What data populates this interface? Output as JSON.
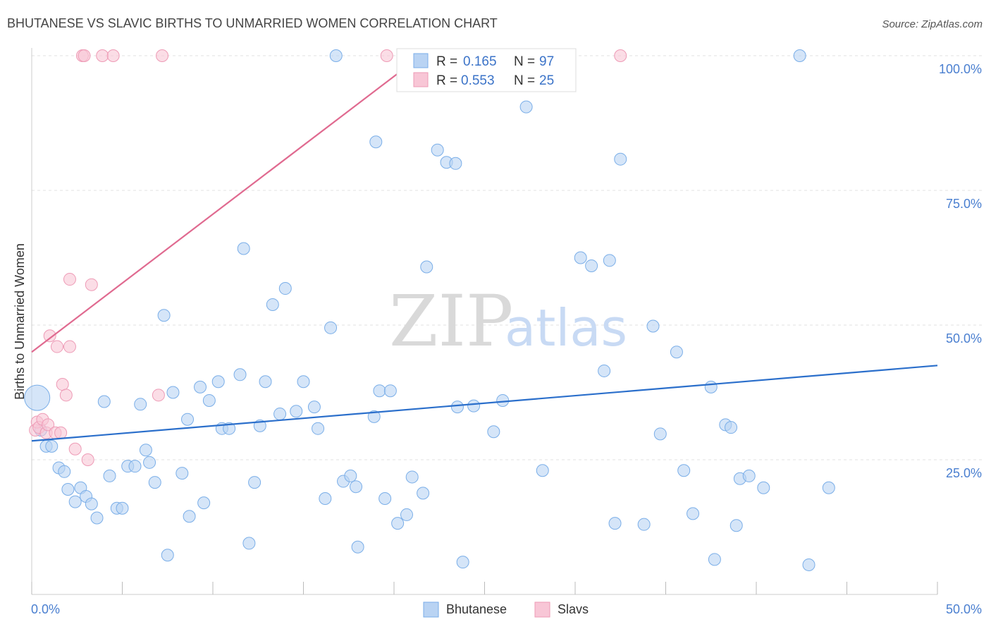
{
  "chart_data": {
    "type": "scatter",
    "title": "BHUTANESE VS SLAVIC BIRTHS TO UNMARRIED WOMEN CORRELATION CHART",
    "source": "Source: ZipAtlas.com",
    "xlabel": "",
    "ylabel": "Births to Unmarried Women",
    "xlim": [
      0,
      50
    ],
    "ylim": [
      0,
      103
    ],
    "x_tick_labels": [
      "0.0%",
      "50.0%"
    ],
    "y_ticks": [
      25,
      50,
      75,
      100
    ],
    "y_tick_labels": [
      "25.0%",
      "50.0%",
      "75.0%",
      "100.0%"
    ],
    "watermark": {
      "zip": "ZIP",
      "atlas": "atlas"
    },
    "legend": {
      "r_label": "R =",
      "n_label": "N =",
      "entries": [
        {
          "name": "Bhutanese",
          "r": "0.165",
          "n": "97"
        },
        {
          "name": "Slavs",
          "r": "0.553",
          "n": "25"
        }
      ]
    },
    "series": [
      {
        "name": "Bhutanese",
        "color": "#7aaee8",
        "fill": "#b9d3f3",
        "trend_color": "#2b6fcb",
        "trend": {
          "x": [
            0,
            50
          ],
          "y": [
            28.5,
            42.5
          ]
        },
        "points": [
          {
            "x": 0.3,
            "y": 36.5,
            "big": true
          },
          {
            "x": 0.5,
            "y": 30.5
          },
          {
            "x": 0.8,
            "y": 27.5
          },
          {
            "x": 1.1,
            "y": 27.5
          },
          {
            "x": 1.5,
            "y": 23.5
          },
          {
            "x": 1.8,
            "y": 22.8
          },
          {
            "x": 2.0,
            "y": 19.5
          },
          {
            "x": 2.4,
            "y": 17.2
          },
          {
            "x": 2.7,
            "y": 19.8
          },
          {
            "x": 3.0,
            "y": 18.2
          },
          {
            "x": 3.3,
            "y": 16.8
          },
          {
            "x": 3.6,
            "y": 14.2
          },
          {
            "x": 4.0,
            "y": 35.8
          },
          {
            "x": 4.3,
            "y": 22.0
          },
          {
            "x": 4.7,
            "y": 16.0
          },
          {
            "x": 5.0,
            "y": 16.0
          },
          {
            "x": 5.3,
            "y": 23.8
          },
          {
            "x": 5.7,
            "y": 23.8
          },
          {
            "x": 6.0,
            "y": 35.3
          },
          {
            "x": 6.3,
            "y": 26.8
          },
          {
            "x": 6.5,
            "y": 24.5
          },
          {
            "x": 6.8,
            "y": 20.8
          },
          {
            "x": 7.3,
            "y": 51.8
          },
          {
            "x": 7.5,
            "y": 7.3
          },
          {
            "x": 7.8,
            "y": 37.5
          },
          {
            "x": 8.3,
            "y": 22.5
          },
          {
            "x": 8.6,
            "y": 32.5
          },
          {
            "x": 8.7,
            "y": 14.5
          },
          {
            "x": 9.3,
            "y": 38.5
          },
          {
            "x": 9.5,
            "y": 17.0
          },
          {
            "x": 9.8,
            "y": 36.0
          },
          {
            "x": 10.3,
            "y": 39.5
          },
          {
            "x": 10.5,
            "y": 30.8
          },
          {
            "x": 10.9,
            "y": 30.8
          },
          {
            "x": 11.5,
            "y": 40.8
          },
          {
            "x": 11.7,
            "y": 64.2
          },
          {
            "x": 12.0,
            "y": 9.5
          },
          {
            "x": 12.3,
            "y": 20.8
          },
          {
            "x": 12.6,
            "y": 31.3
          },
          {
            "x": 12.9,
            "y": 39.5
          },
          {
            "x": 13.3,
            "y": 53.8
          },
          {
            "x": 13.7,
            "y": 33.5
          },
          {
            "x": 14.0,
            "y": 56.8
          },
          {
            "x": 14.6,
            "y": 34.0
          },
          {
            "x": 15.0,
            "y": 39.5
          },
          {
            "x": 15.6,
            "y": 34.8
          },
          {
            "x": 15.8,
            "y": 30.8
          },
          {
            "x": 16.2,
            "y": 17.8
          },
          {
            "x": 16.5,
            "y": 49.5
          },
          {
            "x": 16.8,
            "y": 100.0
          },
          {
            "x": 17.2,
            "y": 21.0
          },
          {
            "x": 17.6,
            "y": 22.0
          },
          {
            "x": 17.9,
            "y": 20.0
          },
          {
            "x": 18.0,
            "y": 8.8
          },
          {
            "x": 18.9,
            "y": 33.0
          },
          {
            "x": 19.0,
            "y": 84.0
          },
          {
            "x": 19.2,
            "y": 37.8
          },
          {
            "x": 19.5,
            "y": 17.8
          },
          {
            "x": 19.8,
            "y": 37.8
          },
          {
            "x": 20.2,
            "y": 13.2
          },
          {
            "x": 20.7,
            "y": 14.8
          },
          {
            "x": 21.0,
            "y": 21.8
          },
          {
            "x": 21.6,
            "y": 18.8
          },
          {
            "x": 21.8,
            "y": 60.8
          },
          {
            "x": 22.4,
            "y": 82.5
          },
          {
            "x": 22.9,
            "y": 80.2
          },
          {
            "x": 23.4,
            "y": 80.0
          },
          {
            "x": 23.5,
            "y": 34.8
          },
          {
            "x": 23.8,
            "y": 6.0
          },
          {
            "x": 24.4,
            "y": 35.0
          },
          {
            "x": 25.5,
            "y": 30.2
          },
          {
            "x": 26.0,
            "y": 36.0
          },
          {
            "x": 27.3,
            "y": 90.5
          },
          {
            "x": 28.2,
            "y": 23.0
          },
          {
            "x": 30.3,
            "y": 62.5
          },
          {
            "x": 30.9,
            "y": 61.0
          },
          {
            "x": 31.6,
            "y": 41.5
          },
          {
            "x": 31.9,
            "y": 62.0
          },
          {
            "x": 32.5,
            "y": 80.8
          },
          {
            "x": 32.2,
            "y": 13.2
          },
          {
            "x": 33.8,
            "y": 13.0
          },
          {
            "x": 34.3,
            "y": 49.8
          },
          {
            "x": 34.7,
            "y": 29.8
          },
          {
            "x": 35.6,
            "y": 45.0
          },
          {
            "x": 36.0,
            "y": 23.0
          },
          {
            "x": 36.5,
            "y": 15.0
          },
          {
            "x": 37.5,
            "y": 38.5
          },
          {
            "x": 37.7,
            "y": 6.5
          },
          {
            "x": 38.3,
            "y": 31.5
          },
          {
            "x": 38.6,
            "y": 31.0
          },
          {
            "x": 38.9,
            "y": 12.8
          },
          {
            "x": 39.1,
            "y": 21.5
          },
          {
            "x": 39.6,
            "y": 22.0
          },
          {
            "x": 40.4,
            "y": 19.8
          },
          {
            "x": 42.4,
            "y": 100.0
          },
          {
            "x": 42.9,
            "y": 5.5
          },
          {
            "x": 44.0,
            "y": 19.8
          }
        ]
      },
      {
        "name": "Slavs",
        "color": "#ee9bb6",
        "fill": "#f8c6d6",
        "trend_color": "#e06a90",
        "trend": {
          "x": [
            0,
            21.5
          ],
          "y": [
            45.0,
            100.0
          ]
        },
        "points": [
          {
            "x": 0.2,
            "y": 30.5
          },
          {
            "x": 0.3,
            "y": 32.0
          },
          {
            "x": 0.4,
            "y": 31.0
          },
          {
            "x": 0.6,
            "y": 32.5
          },
          {
            "x": 0.8,
            "y": 30.0
          },
          {
            "x": 0.9,
            "y": 31.5
          },
          {
            "x": 1.0,
            "y": 48.0
          },
          {
            "x": 1.3,
            "y": 30.0
          },
          {
            "x": 1.4,
            "y": 46.0
          },
          {
            "x": 1.6,
            "y": 30.0
          },
          {
            "x": 1.7,
            "y": 39.0
          },
          {
            "x": 1.9,
            "y": 37.0
          },
          {
            "x": 2.1,
            "y": 46.0
          },
          {
            "x": 2.1,
            "y": 58.5
          },
          {
            "x": 2.4,
            "y": 27.0
          },
          {
            "x": 3.1,
            "y": 25.0
          },
          {
            "x": 3.3,
            "y": 57.5
          },
          {
            "x": 2.8,
            "y": 100.0
          },
          {
            "x": 2.9,
            "y": 100.0
          },
          {
            "x": 3.9,
            "y": 100.0
          },
          {
            "x": 4.5,
            "y": 100.0
          },
          {
            "x": 7.0,
            "y": 37.0
          },
          {
            "x": 7.2,
            "y": 100.0
          },
          {
            "x": 19.6,
            "y": 100.0
          },
          {
            "x": 32.5,
            "y": 100.0
          }
        ]
      }
    ]
  }
}
